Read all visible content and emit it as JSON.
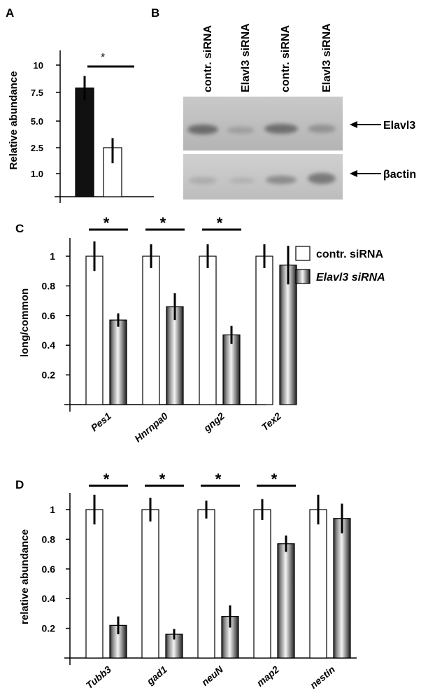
{
  "panels": {
    "a": "A",
    "b": "B",
    "c": "C",
    "d": "D"
  },
  "chart_data": [
    {
      "panel": "A",
      "type": "bar",
      "ylabel": "Relative abundance",
      "ytick_labels": [
        "1.0",
        "2.5",
        "5.0",
        "7.5",
        "10"
      ],
      "categories": [
        "",
        ""
      ],
      "values": [
        7.9,
        2.5
      ],
      "errors": [
        1.1,
        0.9
      ],
      "bar_colors": [
        "#111111",
        "#ffffff"
      ],
      "significance": "*"
    },
    {
      "panel": "B",
      "type": "western_blot",
      "lane_labels": [
        "contr. siRNA",
        "Elavl3 siRNA",
        "contr. siRNA",
        "Elavl3 siRNA"
      ],
      "band_labels": [
        "Elavl3",
        "βactin"
      ]
    },
    {
      "panel": "C",
      "type": "bar",
      "ylabel": "long/common",
      "ylim": [
        0,
        1.1
      ],
      "ytick_labels": [
        "0.2",
        "0.4",
        "0.6",
        "0.8",
        "1"
      ],
      "categories": [
        "Pes1",
        "Hnrnpa0",
        "gng2",
        "Tex2"
      ],
      "series": [
        {
          "name": "contr. siRNA",
          "values": [
            1.0,
            1.0,
            1.0,
            1.0
          ],
          "errors": [
            0.1,
            0.08,
            0.08,
            0.08
          ]
        },
        {
          "name": "Elavl3 siRNA",
          "values": [
            0.57,
            0.66,
            0.47,
            0.94
          ],
          "errors": [
            0.045,
            0.09,
            0.06,
            0.13
          ]
        }
      ],
      "significance": [
        "*",
        "*",
        "*",
        ""
      ],
      "legend": "top-right"
    },
    {
      "panel": "D",
      "type": "bar",
      "ylabel": "relative abundance",
      "ylim": [
        0,
        1.1
      ],
      "ytick_labels": [
        "0.2",
        "0.4",
        "0.6",
        "0.8",
        "1"
      ],
      "categories": [
        "Tubb3",
        "gad1",
        "neuN",
        "map2",
        "nestin"
      ],
      "series": [
        {
          "values": [
            1.0,
            1.0,
            1.0,
            1.0,
            1.0
          ],
          "errors": [
            0.1,
            0.08,
            0.06,
            0.07,
            0.1
          ]
        },
        {
          "values": [
            0.22,
            0.16,
            0.28,
            0.77,
            0.94
          ],
          "errors": [
            0.06,
            0.035,
            0.075,
            0.055,
            0.1
          ]
        }
      ],
      "significance": [
        "*",
        "*",
        "*",
        "*",
        ""
      ]
    }
  ]
}
